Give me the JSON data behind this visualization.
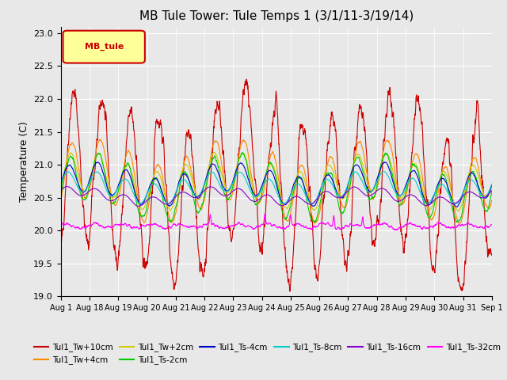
{
  "title": "MB Tule Tower: Tule Temps 1 (3/1/11-3/19/14)",
  "ylabel": "Temperature (C)",
  "ylim": [
    19.0,
    23.1
  ],
  "yticks": [
    19.0,
    19.5,
    20.0,
    20.5,
    21.0,
    21.5,
    22.0,
    22.5,
    23.0
  ],
  "xtick_labels": [
    "Aug 1",
    "Aug 18",
    "Aug 19",
    "Aug 20",
    "Aug 21",
    "Aug 22",
    "Aug 23",
    "Aug 24",
    "Aug 25",
    "Aug 26",
    "Aug 27",
    "Aug 28",
    "Aug 29",
    "Aug 30",
    "Aug 31",
    "Sep 1"
  ],
  "legend_label": "MB_tule",
  "series": [
    {
      "name": "Tul1_Tw+10cm",
      "color": "#cc0000"
    },
    {
      "name": "Tul1_Tw+4cm",
      "color": "#ff8800"
    },
    {
      "name": "Tul1_Tw+2cm",
      "color": "#cccc00"
    },
    {
      "name": "Tul1_Ts-2cm",
      "color": "#00cc00"
    },
    {
      "name": "Tul1_Ts-4cm",
      "color": "#0000cc"
    },
    {
      "name": "Tul1_Ts-8cm",
      "color": "#00cccc"
    },
    {
      "name": "Tul1_Ts-16cm",
      "color": "#8800cc"
    },
    {
      "name": "Tul1_Ts-32cm",
      "color": "#ff00ff"
    }
  ],
  "bg_color": "#e8e8e8",
  "plot_bg_color": "#e8e8e8",
  "grid_color": "white",
  "legend_box_color": "#ffff99",
  "legend_box_edge": "#cc0000"
}
